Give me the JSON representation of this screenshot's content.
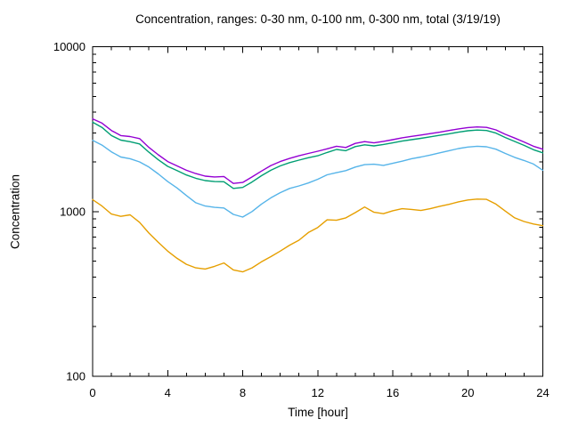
{
  "chart_data": {
    "type": "line",
    "title": "Concentration, ranges: 0-30 nm, 0-100 nm, 0-300 nm, total (3/19/19)",
    "xlabel": "Time [hour]",
    "ylabel": "Concentration",
    "x_scale": "linear",
    "y_scale": "log",
    "xlim": [
      0,
      24
    ],
    "ylim": [
      100,
      10000
    ],
    "x_major_ticks": [
      0,
      4,
      8,
      12,
      16,
      20,
      24
    ],
    "x_minor_step": 1,
    "y_major_ticks": [
      100,
      1000,
      10000
    ],
    "grid": false,
    "legend_position": "none",
    "x": [
      0,
      0.5,
      1,
      1.5,
      2,
      2.5,
      3,
      3.5,
      4,
      4.5,
      5,
      5.5,
      6,
      6.5,
      7,
      7.5,
      8,
      8.5,
      9,
      9.5,
      10,
      10.5,
      11,
      11.5,
      12,
      12.5,
      13,
      13.5,
      14,
      14.5,
      15,
      15.5,
      16,
      16.5,
      17,
      17.5,
      18,
      18.5,
      19,
      19.5,
      20,
      20.5,
      21,
      21.5,
      22,
      22.5,
      23,
      23.5,
      24
    ],
    "series": [
      {
        "name": "0-30 nm",
        "color": "#e69f00",
        "values": [
          1180,
          1080,
          965,
          935,
          955,
          860,
          740,
          650,
          575,
          520,
          478,
          455,
          448,
          465,
          487,
          442,
          430,
          455,
          495,
          532,
          575,
          625,
          670,
          745,
          800,
          890,
          885,
          915,
          985,
          1065,
          990,
          970,
          1010,
          1040,
          1030,
          1015,
          1040,
          1075,
          1105,
          1145,
          1175,
          1190,
          1185,
          1110,
          1005,
          915,
          870,
          840,
          820
        ]
      },
      {
        "name": "0-100 nm",
        "color": "#56b4e9",
        "values": [
          2700,
          2530,
          2300,
          2140,
          2090,
          2000,
          1860,
          1690,
          1520,
          1390,
          1250,
          1130,
          1080,
          1060,
          1050,
          960,
          925,
          1000,
          1110,
          1210,
          1300,
          1380,
          1430,
          1490,
          1570,
          1670,
          1720,
          1770,
          1860,
          1925,
          1935,
          1905,
          1960,
          2020,
          2090,
          2140,
          2200,
          2270,
          2340,
          2410,
          2460,
          2490,
          2470,
          2390,
          2250,
          2130,
          2040,
          1940,
          1780
        ]
      },
      {
        "name": "0-300 nm",
        "color": "#009e73",
        "values": [
          3480,
          3240,
          2890,
          2710,
          2650,
          2570,
          2290,
          2060,
          1880,
          1770,
          1665,
          1590,
          1540,
          1520,
          1515,
          1380,
          1400,
          1510,
          1650,
          1780,
          1890,
          1980,
          2050,
          2120,
          2180,
          2280,
          2380,
          2340,
          2475,
          2540,
          2500,
          2550,
          2610,
          2675,
          2730,
          2780,
          2840,
          2900,
          2960,
          3030,
          3090,
          3120,
          3100,
          2990,
          2810,
          2660,
          2520,
          2370,
          2270
        ]
      },
      {
        "name": "total",
        "color": "#9400d3",
        "values": [
          3650,
          3440,
          3100,
          2890,
          2850,
          2770,
          2450,
          2210,
          2010,
          1890,
          1780,
          1700,
          1640,
          1620,
          1630,
          1480,
          1500,
          1620,
          1760,
          1900,
          2010,
          2100,
          2180,
          2250,
          2320,
          2400,
          2490,
          2445,
          2590,
          2655,
          2610,
          2665,
          2730,
          2800,
          2855,
          2910,
          2970,
          3030,
          3100,
          3170,
          3230,
          3260,
          3240,
          3130,
          2940,
          2790,
          2640,
          2490,
          2390
        ]
      }
    ]
  }
}
